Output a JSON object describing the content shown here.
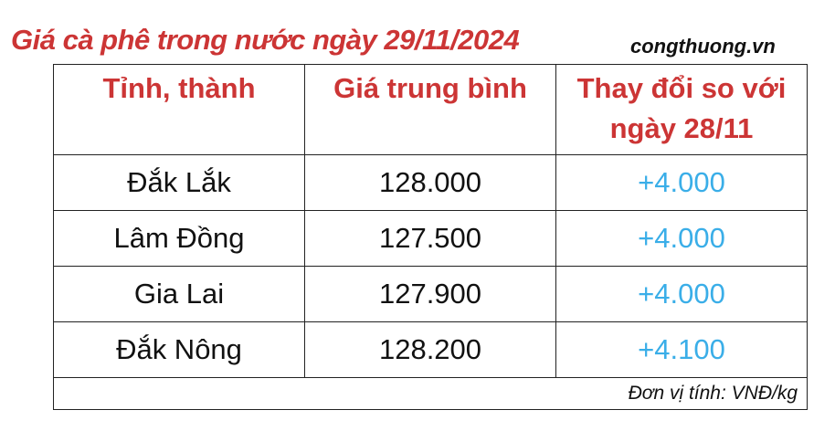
{
  "title": "Giá cà phê trong nước ngày 29/11/2024",
  "brand": "congthuong.vn",
  "table": {
    "headers": [
      "Tỉnh, thành",
      "Giá trung bình",
      "Thay đổi so với ngày 28/11"
    ],
    "rows": [
      [
        "Đắk Lắk",
        "128.000",
        "+4.000"
      ],
      [
        "Lâm Đồng",
        "127.500",
        "+4.000"
      ],
      [
        "Gia Lai",
        "127.900",
        "+4.000"
      ],
      [
        "Đắk Nông",
        "128.200",
        "+4.100"
      ]
    ],
    "unit_note": "Đơn vị tính: VNĐ/kg"
  },
  "colors": {
    "heading": "#cc3535",
    "change": "#3aaee8",
    "text": "#111111"
  }
}
